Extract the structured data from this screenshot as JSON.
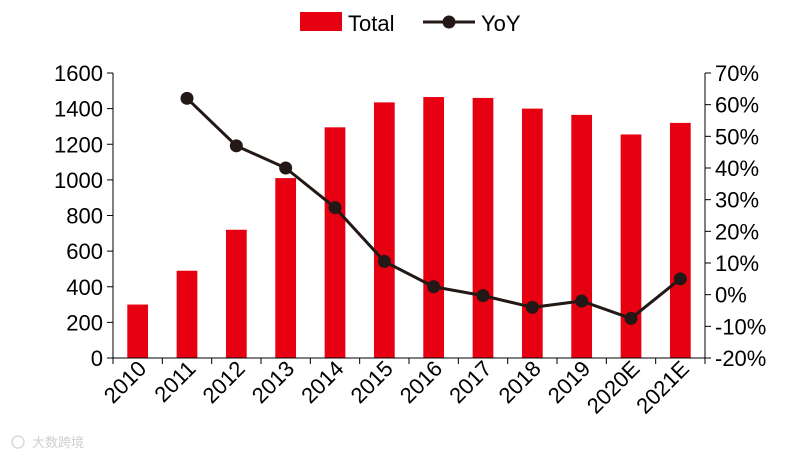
{
  "chart_data": {
    "type": "bar",
    "categories": [
      "2010",
      "2011",
      "2012",
      "2013",
      "2014",
      "2015",
      "2016",
      "2017",
      "2018",
      "2019",
      "2020E",
      "2021E"
    ],
    "series": [
      {
        "name": "Total",
        "type": "bar",
        "axis": "left",
        "color": "#e60012",
        "values": [
          300,
          490,
          720,
          1010,
          1295,
          1435,
          1465,
          1460,
          1400,
          1365,
          1255,
          1320
        ]
      },
      {
        "name": "YoY",
        "type": "line",
        "axis": "right",
        "color": "#231815",
        "values": [
          null,
          0.62,
          0.47,
          0.4,
          0.275,
          0.105,
          0.025,
          -0.003,
          -0.04,
          -0.02,
          -0.075,
          0.05
        ]
      }
    ],
    "left_axis": {
      "ylim": [
        0,
        1600
      ],
      "ticks": [
        0,
        200,
        400,
        600,
        800,
        1000,
        1200,
        1400,
        1600
      ],
      "tick_labels": [
        "0",
        "200",
        "400",
        "600",
        "800",
        "1000",
        "1200",
        "1400",
        "1600"
      ]
    },
    "right_axis": {
      "ylim": [
        -0.2,
        0.7
      ],
      "ticks": [
        -0.2,
        -0.1,
        0,
        0.1,
        0.2,
        0.3,
        0.4,
        0.5,
        0.6,
        0.7
      ],
      "tick_labels": [
        "-20%",
        "-10%",
        "0%",
        "10%",
        "20%",
        "30%",
        "40%",
        "50%",
        "60%",
        "70%"
      ]
    },
    "legend": {
      "position": "top-center",
      "entries": [
        "Total",
        "YoY"
      ]
    },
    "grid": false,
    "title": "",
    "xlabel": "",
    "ylabel": ""
  },
  "watermark": {
    "text": "大数跨境"
  }
}
